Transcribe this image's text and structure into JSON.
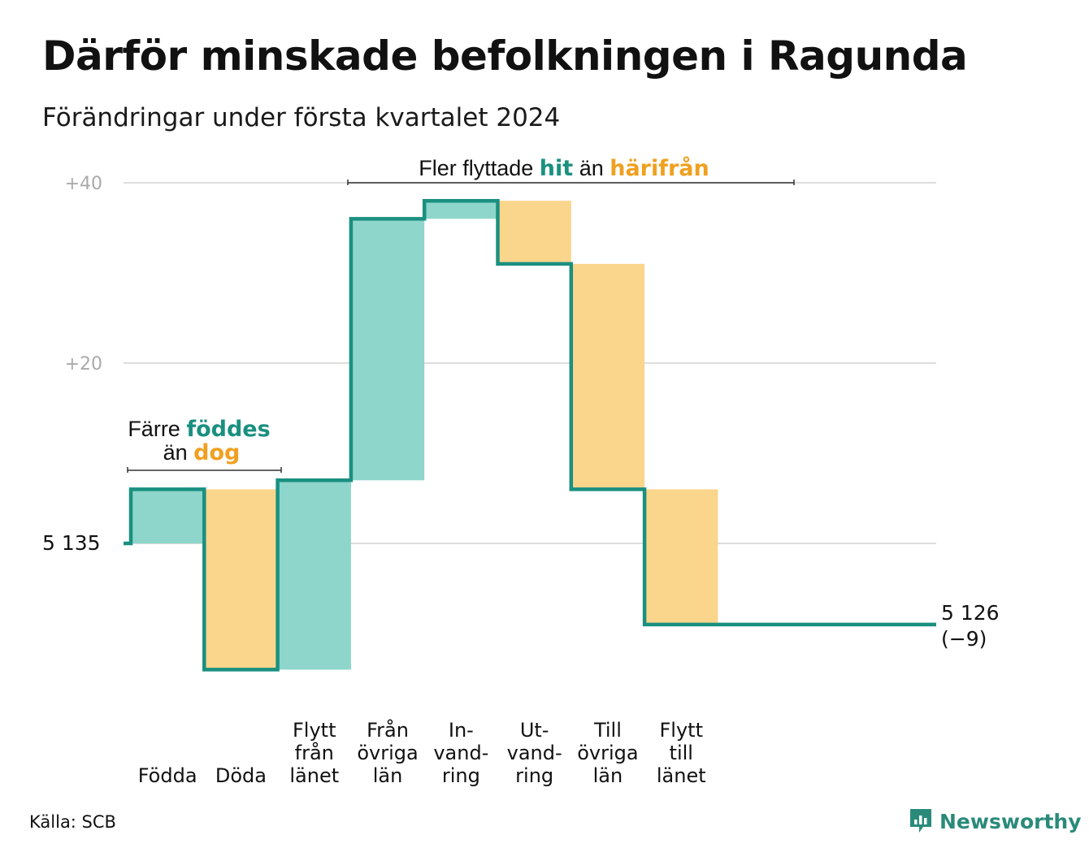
{
  "title": "Därför minskade befolkningen i Ragunda",
  "subtitle": "Förändringar under första kvartalet 2024",
  "source": "Källa: SCB",
  "brand": "Newsworthy",
  "colors": {
    "teal": "#1a9080",
    "teal_light": "#8ed5cb",
    "orange_light": "#fad58c",
    "orange_text": "#f0a020",
    "grid": "#dddddd"
  },
  "chart_data": {
    "type": "waterfall",
    "start_value": 5135,
    "start_label": "5  135",
    "end_label": "5 126",
    "end_change_label": "(−9)",
    "y_ticks": [
      {
        "value": 5175,
        "label": "+40"
      },
      {
        "value": 5155,
        "label": "+20"
      },
      {
        "value": 5135,
        "label": ""
      }
    ],
    "ylim": [
      5118,
      5177
    ],
    "steps": [
      {
        "label": [
          "",
          "",
          "Födda"
        ],
        "change": 6
      },
      {
        "label": [
          "",
          "",
          "Döda"
        ],
        "change": -20
      },
      {
        "label": [
          "Flytt",
          "från",
          "länet"
        ],
        "change": 21
      },
      {
        "label": [
          "Från",
          "övriga",
          "län"
        ],
        "change": 29
      },
      {
        "label": [
          "In-",
          "vand-",
          "ring"
        ],
        "change": 2
      },
      {
        "label": [
          "Ut-",
          "vand-",
          "ring"
        ],
        "change": -7
      },
      {
        "label": [
          "Till",
          "övriga",
          "län"
        ],
        "change": -25
      },
      {
        "label": [
          "Flytt",
          "till",
          "länet"
        ],
        "change": -15
      }
    ],
    "annotations": {
      "births": {
        "line1": "Färre",
        "line1_hl": "föddes",
        "line2": "än",
        "line2_hl": "dog"
      },
      "migration": {
        "pre": "Fler flyttade",
        "hl1": "hit",
        "mid": "än",
        "hl2": "härifrån"
      }
    }
  }
}
